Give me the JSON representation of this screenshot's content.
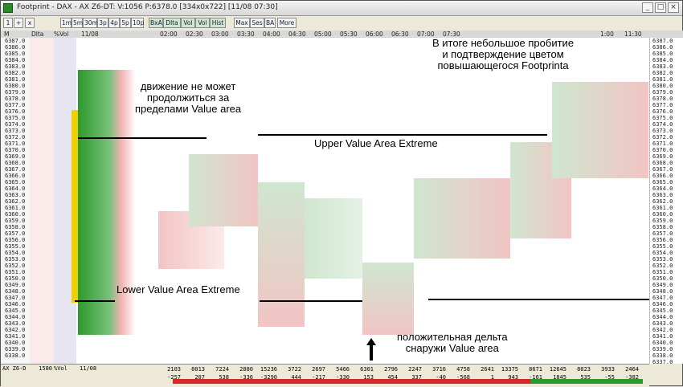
{
  "window": {
    "title": "Footprint - DAX - AX Z6-DT: V:1056 P:6378.0 [334x0x722] [11/08 07:30]",
    "min": "_",
    "max": "□",
    "close": "×",
    "icon": "footprint-app-icon"
  },
  "toolbar": {
    "small_buttons": [
      "1",
      "+",
      "x"
    ],
    "timeframes": [
      "1m",
      "5m",
      "30m",
      "3p",
      "4p",
      "5p",
      "10p"
    ],
    "modes": [
      "BxA",
      "Dlta",
      "Vol",
      "Vol",
      "Hist"
    ],
    "options": [
      "Max",
      "Ses",
      "BA"
    ],
    "more": "More"
  },
  "profile_header": {
    "col1": "M",
    "col2": "Dlta",
    "col3": "%Vol",
    "col4": "11/08"
  },
  "time_header": [
    "02:00",
    "02:30",
    "03:00",
    "03:30",
    "04:00",
    "04:30",
    "05:00",
    "05:30",
    "06:00",
    "06:30",
    "07:00",
    "07:30",
    "1:00",
    "11:30"
  ],
  "price_ladder": [
    "6387.0",
    "6386.0",
    "6385.0",
    "6384.0",
    "6383.0",
    "6382.0",
    "6381.0",
    "6380.0",
    "6379.0",
    "6378.0",
    "6377.0",
    "6376.0",
    "6375.0",
    "6374.0",
    "6373.0",
    "6372.0",
    "6371.0",
    "6370.0",
    "6369.0",
    "6368.0",
    "6367.0",
    "6366.0",
    "6365.0",
    "6364.0",
    "6363.0",
    "6362.0",
    "6361.0",
    "6360.0",
    "6359.0",
    "6358.0",
    "6357.0",
    "6356.0",
    "6355.0",
    "6354.0",
    "6353.0",
    "6352.0",
    "6351.0",
    "6350.0",
    "6349.0",
    "6348.0",
    "6347.0",
    "6346.0",
    "6345.0",
    "6344.0",
    "6343.0",
    "6342.0",
    "6341.0",
    "6340.0",
    "6339.0",
    "6338.0",
    "6337.0"
  ],
  "annotations": {
    "top_right": "В итоге небольшое пробитие\nи подтверждение цветом\nповышающегося Footprinta",
    "upper_note": "движение не может\nпродолжиться за\nпределами Value area",
    "upper_line": "Upper Value Area Extreme",
    "lower_line": "Lower Value Area Extreme",
    "bottom_note": "положительная дельта\nснаружи Value area"
  },
  "footer": {
    "left_label": "AX Z6-D",
    "left_vol": "1580",
    "left_pct": "%Vol",
    "left_date": "11/08",
    "volumes": [
      "2103",
      "8013",
      "7224",
      "2880",
      "15236",
      "3722",
      "2697",
      "5466",
      "6301",
      "2796",
      "2247",
      "3716",
      "4758",
      "2641",
      "13375",
      "8671",
      "12645",
      "8023",
      "3933",
      "2464"
    ],
    "deltas": [
      "-257",
      "207",
      "538",
      "-336",
      "-3290",
      "444",
      "-217",
      "-330",
      "153",
      "454",
      "337",
      "-40",
      "-568",
      "1",
      "943",
      "-161",
      "1845",
      "535",
      "-55",
      "-382"
    ]
  },
  "colors": {
    "green": "#2c9a2c",
    "red": "#d62a2a",
    "light_green": "#cfe6cf",
    "light_red": "#f2c4c4"
  }
}
